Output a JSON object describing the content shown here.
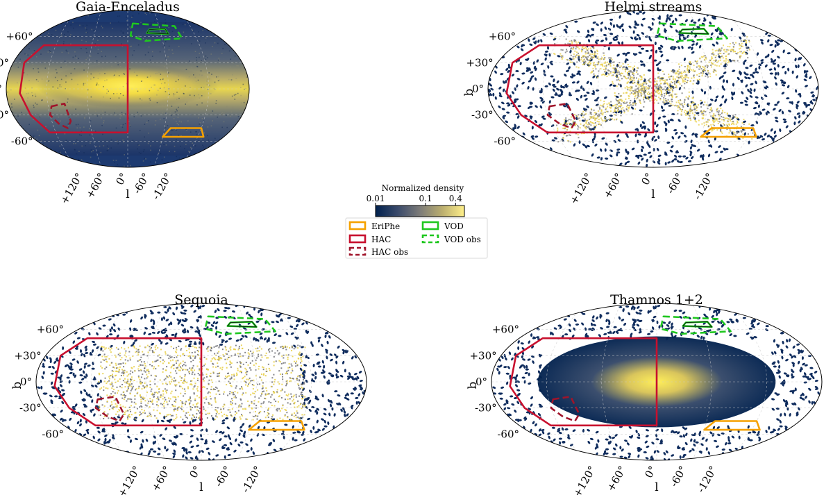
{
  "chart_data": {
    "type": "heatmap",
    "projection": "aitoff",
    "panels": [
      {
        "title": "Gaia-Enceladus",
        "texture": "smooth",
        "disk_band": true,
        "x_pattern": false,
        "blob": false
      },
      {
        "title": "Helmi streams",
        "texture": "speckle",
        "disk_band": false,
        "x_pattern": true,
        "blob": false
      },
      {
        "title": "Sequoia",
        "texture": "speckle",
        "disk_band": false,
        "x_pattern": false,
        "blob": true
      },
      {
        "title": "Thamnos 1+2",
        "texture": "mixed",
        "disk_band": true,
        "x_pattern": false,
        "blob": false
      }
    ],
    "lat_ticks": [
      "+60°",
      "+30°",
      "0°",
      "-30°",
      "-60°"
    ],
    "lat_values": [
      60,
      30,
      0,
      -30,
      -60
    ],
    "lon_ticks": [
      "+120°",
      "+60°",
      "0°",
      "-60°",
      "-120°"
    ],
    "lon_values": [
      120,
      60,
      0,
      -60,
      -120
    ],
    "xlabel": "l",
    "ylabel": "b",
    "grid": true,
    "colorbar": {
      "label": "Normalized density",
      "scale": "log",
      "range": [
        0.01,
        0.6
      ],
      "tick_labels": [
        "0.01",
        "0.1",
        "0.4"
      ],
      "tick_values": [
        0.01,
        0.1,
        0.4
      ],
      "colors": [
        "#00204d",
        "#3a4a6b",
        "#7c7b78",
        "#bbae6f",
        "#fff08a"
      ]
    },
    "regions": [
      {
        "name": "EriPhe",
        "color": "#f5a100",
        "dash": false,
        "shape": "parallelogram",
        "l_range": [
          -70,
          -130
        ],
        "b_range": [
          -45,
          -55
        ]
      },
      {
        "name": "HAC",
        "color": "#c8102e",
        "dash": false,
        "shape": "polygon",
        "l_range": [
          160,
          0
        ],
        "b_range": [
          50,
          -50
        ]
      },
      {
        "name": "HAC obs",
        "color": "#a0142a",
        "dash": true,
        "shape": "polygon",
        "l_range": [
          115,
          90
        ],
        "b_range": [
          -20,
          -45
        ]
      },
      {
        "name": "VOD",
        "color": "#1fc71f",
        "dash": false,
        "shape": "polygon",
        "l_range": [
          -40,
          -70
        ],
        "b_range": [
          68,
          63
        ]
      },
      {
        "name": "VOD obs",
        "color": "#1fc71f",
        "dash": true,
        "shape": "polygon",
        "l_range": [
          -10,
          -90
        ],
        "b_range": [
          75,
          55
        ]
      }
    ],
    "legend": {
      "placement": "center",
      "columns": 2
    }
  }
}
